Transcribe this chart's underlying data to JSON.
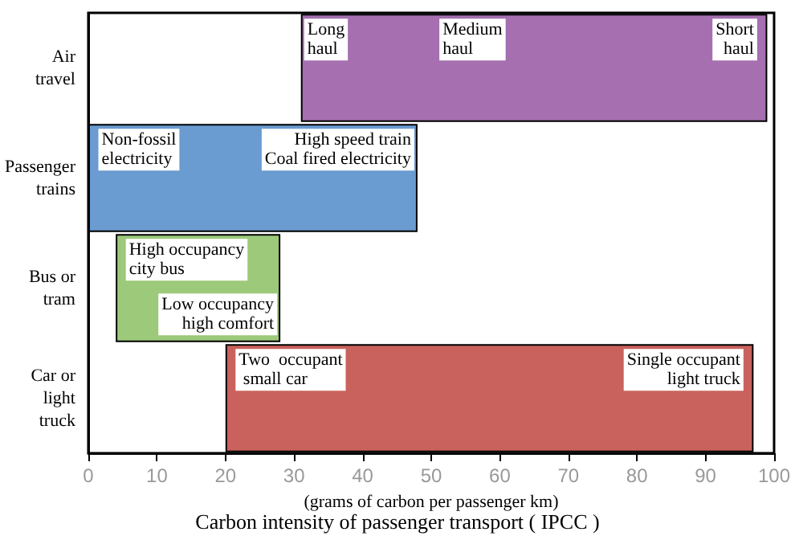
{
  "chart_data": {
    "type": "bar",
    "orientation": "horizontal",
    "title": "Carbon intensity of passenger transport ( IPCC )",
    "xlabel": "(grams of carbon per passenger km)",
    "categories": [
      "Air\ntravel",
      "Passenger\ntrains",
      "Bus or\ntram",
      "Car or\nlight\ntruck"
    ],
    "base": [
      31,
      0,
      4,
      20
    ],
    "values": [
      68,
      48,
      24,
      77
    ],
    "colors": [
      "#a56fb0",
      "#6a9bd1",
      "#9cc97a",
      "#c9625c"
    ],
    "xlim": [
      0,
      100
    ],
    "xticks": [
      0,
      10,
      20,
      30,
      40,
      50,
      60,
      70,
      80,
      90,
      100
    ],
    "grid": false,
    "annotations": [
      {
        "text": "Long\nhaul",
        "x": 31,
        "y": "Air\ntravel"
      },
      "Medium\nhaul",
      {
        "text": "Short\nhaul",
        "x": 98,
        "y": "Air\ntravel"
      },
      {
        "text": "Non-fossil\nelectricity",
        "x": 1,
        "y": "Passenger\ntrains"
      },
      {
        "text": "High speed train\nCoal fired electricity",
        "x": 48,
        "y": "Passenger\ntrains"
      },
      {
        "text": "High occupancy\ncity bus",
        "x": 5,
        "y": "Bus or\ntram"
      },
      {
        "text": "Low occupancy\nhigh comfort",
        "x": 28,
        "y": "Bus or\ntram"
      },
      {
        "text": "Two  occupant\n small car",
        "x": 21,
        "y": "Car or\nlight\ntruck"
      },
      {
        "text": "Single occupant\n light truck",
        "x": 96,
        "y": "Car or\nlight\ntruck"
      }
    ]
  }
}
